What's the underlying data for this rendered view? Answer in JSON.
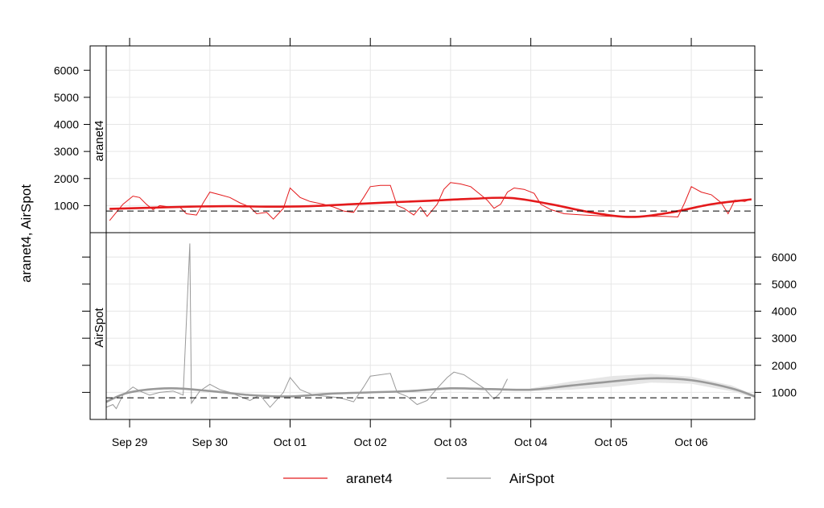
{
  "chart_data": {
    "type": "line",
    "ylabel": "aranet4, AirSpot",
    "x_ticks": [
      "Sep 29",
      "Sep 30",
      "Oct 01",
      "Oct 02",
      "Oct 03",
      "Oct 04",
      "Oct 05",
      "Oct 06"
    ],
    "xlim": [
      "2023-09-28T17:00",
      "2023-10-06T19:00"
    ],
    "ylim": [
      0,
      6900
    ],
    "y_ticks": [
      1000,
      2000,
      3000,
      4000,
      5000,
      6000
    ],
    "threshold": 800,
    "grid": true,
    "legend_position": "bottom",
    "colors": {
      "aranet4": "#e41a1c",
      "AirSpot": "#999999",
      "band": "#e6e6e6",
      "grid": "#e6e6e6"
    },
    "panels": [
      {
        "strip": "aranet4",
        "series": "aranet4",
        "raw": [
          [
            "2023-09-28T18:00",
            450
          ],
          [
            "2023-09-28T20:00",
            750
          ],
          [
            "2023-09-28T22:00",
            1050
          ],
          [
            "2023-09-29T01:00",
            1350
          ],
          [
            "2023-09-29T03:00",
            1300
          ],
          [
            "2023-09-29T05:00",
            1050
          ],
          [
            "2023-09-29T07:00",
            850
          ],
          [
            "2023-09-29T09:00",
            1000
          ],
          [
            "2023-09-29T12:00",
            950
          ],
          [
            "2023-09-29T15:00",
            950
          ],
          [
            "2023-09-29T17:00",
            700
          ],
          [
            "2023-09-29T20:00",
            650
          ],
          [
            "2023-09-29T22:00",
            1100
          ],
          [
            "2023-09-30T00:00",
            1500
          ],
          [
            "2023-09-30T03:00",
            1400
          ],
          [
            "2023-09-30T06:00",
            1300
          ],
          [
            "2023-09-30T09:00",
            1100
          ],
          [
            "2023-09-30T12:00",
            950
          ],
          [
            "2023-09-30T14:00",
            700
          ],
          [
            "2023-09-30T17:00",
            750
          ],
          [
            "2023-09-30T19:00",
            500
          ],
          [
            "2023-09-30T22:00",
            900
          ],
          [
            "2023-10-01T00:00",
            1650
          ],
          [
            "2023-10-01T03:00",
            1300
          ],
          [
            "2023-10-01T06:00",
            1150
          ],
          [
            "2023-10-01T10:00",
            1050
          ],
          [
            "2023-10-01T13:00",
            950
          ],
          [
            "2023-10-01T16:00",
            800
          ],
          [
            "2023-10-01T19:00",
            750
          ],
          [
            "2023-10-01T22:00",
            1300
          ],
          [
            "2023-10-02T00:00",
            1700
          ],
          [
            "2023-10-02T03:00",
            1750
          ],
          [
            "2023-10-02T06:00",
            1750
          ],
          [
            "2023-10-02T08:00",
            1000
          ],
          [
            "2023-10-02T10:00",
            900
          ],
          [
            "2023-10-02T13:00",
            650
          ],
          [
            "2023-10-02T15:00",
            950
          ],
          [
            "2023-10-02T17:00",
            600
          ],
          [
            "2023-10-02T20:00",
            1050
          ],
          [
            "2023-10-02T22:00",
            1600
          ],
          [
            "2023-10-03T00:00",
            1850
          ],
          [
            "2023-10-03T03:00",
            1800
          ],
          [
            "2023-10-03T06:00",
            1700
          ],
          [
            "2023-10-03T09:00",
            1400
          ],
          [
            "2023-10-03T11:00",
            1200
          ],
          [
            "2023-10-03T13:00",
            900
          ],
          [
            "2023-10-03T15:00",
            1050
          ],
          [
            "2023-10-03T17:00",
            1500
          ],
          [
            "2023-10-03T19:00",
            1650
          ],
          [
            "2023-10-03T22:00",
            1600
          ],
          [
            "2023-10-04T01:00",
            1450
          ],
          [
            "2023-10-04T03:00",
            1050
          ],
          [
            "2023-10-04T06:00",
            850
          ],
          [
            "2023-10-04T10:00",
            700
          ],
          [
            "2023-10-04T16:00",
            650
          ],
          [
            "2023-10-05T00:00",
            600
          ],
          [
            "2023-10-05T08:00",
            600
          ],
          [
            "2023-10-05T16:00",
            600
          ],
          [
            "2023-10-05T20:00",
            580
          ],
          [
            "2023-10-05T22:00",
            1100
          ],
          [
            "2023-10-06T00:00",
            1700
          ],
          [
            "2023-10-06T03:00",
            1500
          ],
          [
            "2023-10-06T06:00",
            1400
          ],
          [
            "2023-10-06T09:00",
            1100
          ],
          [
            "2023-10-06T11:00",
            700
          ],
          [
            "2023-10-06T13:00",
            1200
          ],
          [
            "2023-10-06T16:00",
            1150
          ],
          [
            "2023-10-06T18:00",
            1250
          ]
        ],
        "smooth": [
          [
            "2023-09-28T18:00",
            880
          ],
          [
            "2023-09-29T06:00",
            920
          ],
          [
            "2023-09-29T18:00",
            960
          ],
          [
            "2023-09-30T06:00",
            980
          ],
          [
            "2023-09-30T18:00",
            960
          ],
          [
            "2023-10-01T06:00",
            980
          ],
          [
            "2023-10-01T18:00",
            1050
          ],
          [
            "2023-10-02T06:00",
            1120
          ],
          [
            "2023-10-02T18:00",
            1180
          ],
          [
            "2023-10-03T06:00",
            1250
          ],
          [
            "2023-10-03T18:00",
            1280
          ],
          [
            "2023-10-04T06:00",
            1050
          ],
          [
            "2023-10-04T18:00",
            750
          ],
          [
            "2023-10-05T06:00",
            580
          ],
          [
            "2023-10-05T18:00",
            750
          ],
          [
            "2023-10-06T06:00",
            1050
          ],
          [
            "2023-10-06T18:00",
            1230
          ]
        ]
      },
      {
        "strip": "AirSpot",
        "series": "AirSpot",
        "raw": [
          [
            "2023-09-28T17:00",
            450
          ],
          [
            "2023-09-28T19:00",
            550
          ],
          [
            "2023-09-28T20:00",
            400
          ],
          [
            "2023-09-28T22:00",
            900
          ],
          [
            "2023-09-29T01:00",
            1200
          ],
          [
            "2023-09-29T03:00",
            1050
          ],
          [
            "2023-09-29T06:00",
            900
          ],
          [
            "2023-09-29T09:00",
            1000
          ],
          [
            "2023-09-29T13:00",
            1050
          ],
          [
            "2023-09-29T16:00",
            900
          ],
          [
            "2023-09-29T18:00",
            6500
          ],
          [
            "2023-09-29T18:30",
            600
          ],
          [
            "2023-09-29T21:00",
            1050
          ],
          [
            "2023-09-30T00:00",
            1300
          ],
          [
            "2023-09-30T03:00",
            1100
          ],
          [
            "2023-09-30T06:00",
            1000
          ],
          [
            "2023-09-30T09:00",
            850
          ],
          [
            "2023-09-30T12:00",
            700
          ],
          [
            "2023-09-30T15:00",
            900
          ],
          [
            "2023-09-30T18:00",
            450
          ],
          [
            "2023-09-30T22:00",
            1000
          ],
          [
            "2023-10-01T00:00",
            1550
          ],
          [
            "2023-10-01T03:00",
            1100
          ],
          [
            "2023-10-01T07:00",
            900
          ],
          [
            "2023-10-01T11:00",
            850
          ],
          [
            "2023-10-01T15:00",
            800
          ],
          [
            "2023-10-01T19:00",
            650
          ],
          [
            "2023-10-01T22:00",
            1200
          ],
          [
            "2023-10-02T00:00",
            1600
          ],
          [
            "2023-10-02T03:00",
            1650
          ],
          [
            "2023-10-02T06:00",
            1700
          ],
          [
            "2023-10-02T08:00",
            1000
          ],
          [
            "2023-10-02T11:00",
            850
          ],
          [
            "2023-10-02T14:00",
            550
          ],
          [
            "2023-10-02T17:00",
            700
          ],
          [
            "2023-10-02T20:00",
            1150
          ],
          [
            "2023-10-02T23:00",
            1550
          ],
          [
            "2023-10-03T01:00",
            1750
          ],
          [
            "2023-10-03T04:00",
            1650
          ],
          [
            "2023-10-03T07:00",
            1400
          ],
          [
            "2023-10-03T10:00",
            1150
          ],
          [
            "2023-10-03T13:00",
            750
          ],
          [
            "2023-10-03T15:00",
            1000
          ],
          [
            "2023-10-03T17:00",
            1500
          ]
        ],
        "smooth": [
          [
            "2023-09-28T17:00",
            650
          ],
          [
            "2023-09-29T00:00",
            1000
          ],
          [
            "2023-09-29T12:00",
            1150
          ],
          [
            "2023-09-30T00:00",
            1050
          ],
          [
            "2023-09-30T12:00",
            900
          ],
          [
            "2023-10-01T00:00",
            850
          ],
          [
            "2023-10-01T12:00",
            950
          ],
          [
            "2023-10-02T00:00",
            1000
          ],
          [
            "2023-10-02T12:00",
            1050
          ],
          [
            "2023-10-03T00:00",
            1150
          ],
          [
            "2023-10-03T12:00",
            1120
          ],
          [
            "2023-10-04T00:00",
            1100
          ],
          [
            "2023-10-04T12:00",
            1250
          ],
          [
            "2023-10-05T00:00",
            1400
          ],
          [
            "2023-10-05T12:00",
            1520
          ],
          [
            "2023-10-06T00:00",
            1450
          ],
          [
            "2023-10-06T12:00",
            1150
          ],
          [
            "2023-10-06T19:00",
            850
          ]
        ],
        "band_upper": [
          [
            "2023-10-04T00:00",
            1150
          ],
          [
            "2023-10-04T12:00",
            1400
          ],
          [
            "2023-10-05T00:00",
            1600
          ],
          [
            "2023-10-05T12:00",
            1680
          ],
          [
            "2023-10-06T00:00",
            1580
          ],
          [
            "2023-10-06T12:00",
            1260
          ],
          [
            "2023-10-06T19:00",
            900
          ]
        ],
        "band_lower": [
          [
            "2023-10-04T00:00",
            1050
          ],
          [
            "2023-10-04T12:00",
            1100
          ],
          [
            "2023-10-05T00:00",
            1200
          ],
          [
            "2023-10-05T12:00",
            1360
          ],
          [
            "2023-10-06T00:00",
            1320
          ],
          [
            "2023-10-06T12:00",
            1040
          ],
          [
            "2023-10-06T19:00",
            800
          ]
        ]
      }
    ],
    "legend": [
      {
        "name": "aranet4",
        "color": "#e41a1c"
      },
      {
        "name": "AirSpot",
        "color": "#999999"
      }
    ]
  }
}
